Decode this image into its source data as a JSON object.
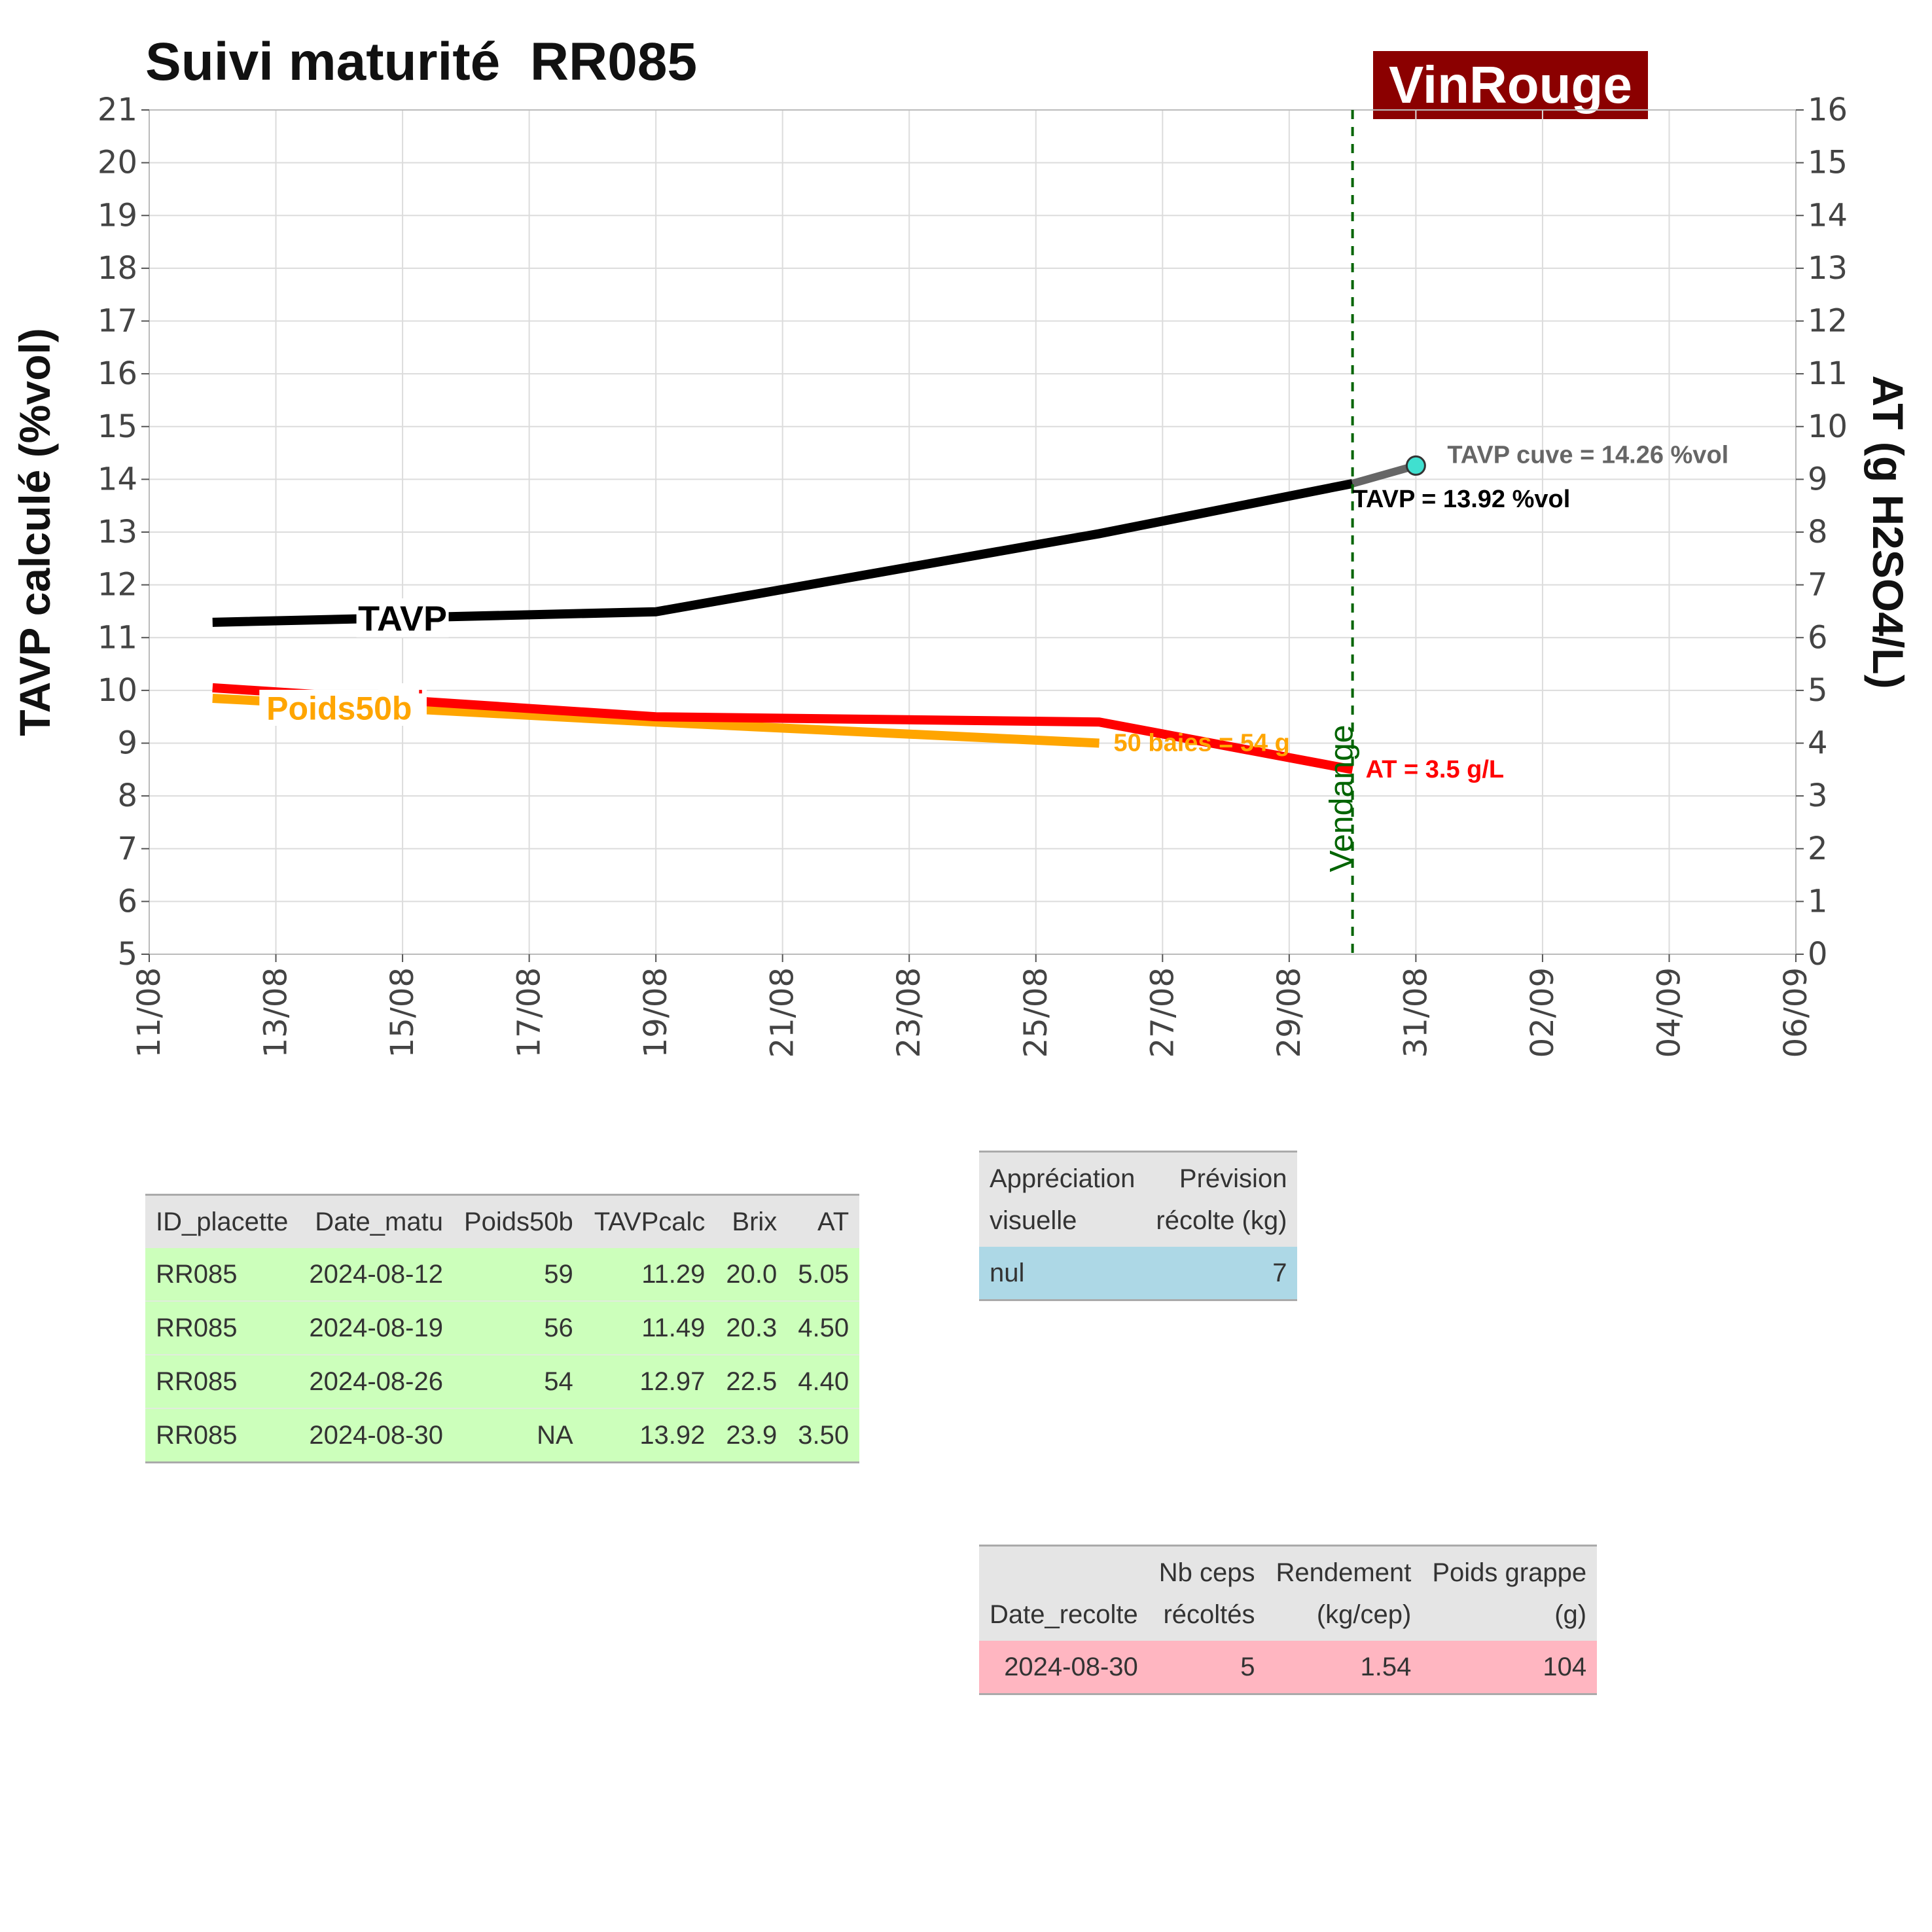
{
  "title": "Suivi maturité  RR085",
  "brand": "VinRouge",
  "chart_data": {
    "type": "line",
    "x_tick_labels": [
      "11/08",
      "13/08",
      "15/08",
      "17/08",
      "19/08",
      "21/08",
      "23/08",
      "25/08",
      "27/08",
      "29/08",
      "31/08",
      "02/09",
      "04/09",
      "06/09"
    ],
    "x_tick_dates": [
      "2024-08-11",
      "2024-08-13",
      "2024-08-15",
      "2024-08-17",
      "2024-08-19",
      "2024-08-21",
      "2024-08-23",
      "2024-08-25",
      "2024-08-27",
      "2024-08-29",
      "2024-08-31",
      "2024-09-02",
      "2024-09-04",
      "2024-09-06"
    ],
    "x_range": [
      "2024-08-11",
      "2024-09-06"
    ],
    "ylabel_left": "TAVP calculé (%vol)",
    "ylabel_right": "AT (g H2SO4/L)",
    "ylim_left": [
      5,
      21
    ],
    "ylim_right": [
      0,
      16
    ],
    "y_ticks_left": [
      5,
      6,
      7,
      8,
      9,
      10,
      11,
      12,
      13,
      14,
      15,
      16,
      17,
      18,
      19,
      20,
      21
    ],
    "y_ticks_right": [
      0,
      1,
      2,
      3,
      4,
      5,
      6,
      7,
      8,
      9,
      10,
      11,
      12,
      13,
      14,
      15,
      16
    ],
    "grid": true,
    "series": [
      {
        "name": "TAVP",
        "axis": "left",
        "color": "#000000",
        "x": [
          "2024-08-12",
          "2024-08-19",
          "2024-08-26",
          "2024-08-30"
        ],
        "y": [
          11.29,
          11.49,
          12.97,
          13.92
        ]
      },
      {
        "name": "AT",
        "axis": "right",
        "color": "#ff0000",
        "x": [
          "2024-08-12",
          "2024-08-19",
          "2024-08-26",
          "2024-08-30"
        ],
        "y": [
          5.05,
          4.5,
          4.4,
          3.5
        ]
      },
      {
        "name": "Poids50b",
        "axis": "right",
        "color": "#ffa500",
        "x": [
          "2024-08-12",
          "2024-08-19",
          "2024-08-26"
        ],
        "y": [
          4.85,
          4.4,
          4.0
        ]
      }
    ],
    "cuve_point": {
      "x": "2024-08-31",
      "y": 14.26,
      "color": "#40e0d0",
      "line_color": "#666666"
    },
    "vline": {
      "x": "2024-08-30",
      "label": "Vendange",
      "color": "#006400"
    },
    "annotations": {
      "tavp_cuve": "TAVP cuve = 14.26 %vol",
      "tavp": "TAVP = 13.92 %vol",
      "at": "AT = 3.5 g/L",
      "poids": "50 baies = 54 g"
    }
  },
  "matu_table": {
    "headers": [
      "ID_placette",
      "Date_matu",
      "Poids50b",
      "TAVPcalc",
      "Brix",
      "AT"
    ],
    "rows": [
      [
        "RR085",
        "2024-08-12",
        "59",
        "11.29",
        "20.0",
        "5.05"
      ],
      [
        "RR085",
        "2024-08-19",
        "56",
        "11.49",
        "20.3",
        "4.50"
      ],
      [
        "RR085",
        "2024-08-26",
        "54",
        "12.97",
        "22.5",
        "4.40"
      ],
      [
        "RR085",
        "2024-08-30",
        "NA",
        "13.92",
        "23.9",
        "3.50"
      ]
    ]
  },
  "appreciation_table": {
    "headers": [
      [
        "Appréciation",
        "visuelle"
      ],
      [
        "Prévision",
        "récolte (kg)"
      ]
    ],
    "rows": [
      [
        "nul",
        "7"
      ]
    ]
  },
  "recolte_table": {
    "headers": [
      [
        "",
        "Date_recolte"
      ],
      [
        "Nb ceps",
        "récoltés"
      ],
      [
        "Rendement",
        "(kg/cep)"
      ],
      [
        "Poids grappe",
        "(g)"
      ]
    ],
    "rows": [
      [
        "2024-08-30",
        "5",
        "1.54",
        "104"
      ]
    ]
  },
  "colors": {
    "brand_bg": "#8b0000",
    "matu_rows": "#ccffbb",
    "appreciation_rows": "#add8e6",
    "recolte_rows": "#ffb6c1",
    "header_bg": "#e5e5e5"
  }
}
